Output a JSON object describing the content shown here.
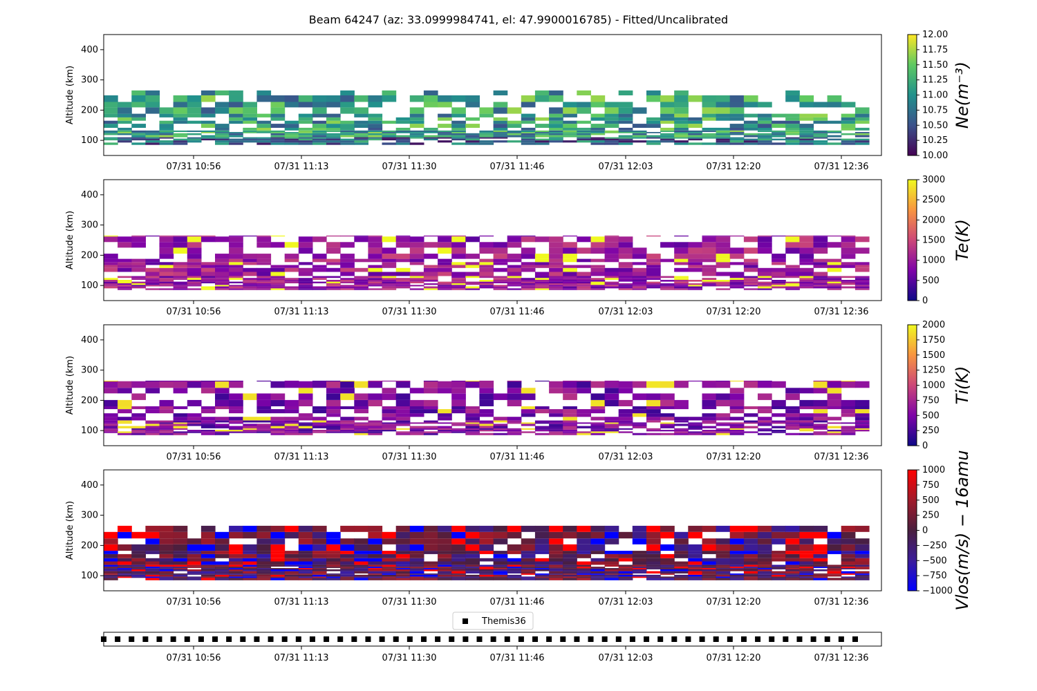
{
  "title": "Beam 64247 (az: 33.0999984741, el: 47.9900016785) - Fitted/Uncalibrated",
  "time_ticks": [
    "07/31 10:56",
    "07/31 11:13",
    "07/31 11:30",
    "07/31 11:46",
    "07/31 12:03",
    "07/31 12:20",
    "07/31 12:36"
  ],
  "chart_data": [
    {
      "type": "heatmap",
      "name": "Ne",
      "ylabel": "Altitude (km)",
      "yticks": [
        100,
        200,
        300,
        400
      ],
      "ylim": [
        50,
        450
      ],
      "xlim_minutes": [
        0,
        108
      ],
      "data_x_minutes": [
        1,
        106
      ],
      "data_alt_km": [
        85,
        265
      ],
      "colorbar": {
        "label": "Ne(m⁻³)",
        "range": [
          10.0,
          12.0
        ],
        "ticks": [
          "10.00",
          "10.25",
          "10.50",
          "10.75",
          "11.00",
          "11.25",
          "11.50",
          "11.75",
          "12.00"
        ],
        "colormap": "viridis",
        "stops": [
          "#440154",
          "#3b528b",
          "#21918c",
          "#5ec962",
          "#fde725"
        ]
      },
      "value_bias": 0.55,
      "missing_prob": 0.32,
      "seed": 11
    },
    {
      "type": "heatmap",
      "name": "Te",
      "ylabel": "Altitude (km)",
      "yticks": [
        100,
        200,
        300,
        400
      ],
      "ylim": [
        50,
        450
      ],
      "xlim_minutes": [
        0,
        108
      ],
      "data_x_minutes": [
        1,
        106
      ],
      "data_alt_km": [
        85,
        265
      ],
      "colorbar": {
        "label": "Te(K)",
        "range": [
          0,
          3000
        ],
        "ticks": [
          "0",
          "500",
          "1000",
          "1500",
          "2000",
          "2500",
          "3000"
        ],
        "colormap": "plasma",
        "stops": [
          "#0d0887",
          "#7e03a8",
          "#cc4778",
          "#f89540",
          "#f0f921"
        ]
      },
      "value_bias": 0.35,
      "missing_prob": 0.3,
      "seed": 23
    },
    {
      "type": "heatmap",
      "name": "Ti",
      "ylabel": "Altitude (km)",
      "yticks": [
        100,
        200,
        300,
        400
      ],
      "ylim": [
        50,
        450
      ],
      "xlim_minutes": [
        0,
        108
      ],
      "data_x_minutes": [
        1,
        106
      ],
      "data_alt_km": [
        85,
        265
      ],
      "colorbar": {
        "label": "Ti(K)",
        "range": [
          0,
          2000
        ],
        "ticks": [
          "0",
          "250",
          "500",
          "750",
          "1000",
          "1250",
          "1500",
          "1750",
          "2000"
        ],
        "colormap": "plasma",
        "stops": [
          "#0d0887",
          "#7e03a8",
          "#cc4778",
          "#f89540",
          "#f0f921"
        ]
      },
      "value_bias": 0.28,
      "missing_prob": 0.38,
      "seed": 37
    },
    {
      "type": "heatmap",
      "name": "Vlos",
      "ylabel": "Altitude (km)",
      "yticks": [
        100,
        200,
        300,
        400
      ],
      "ylim": [
        50,
        450
      ],
      "xlim_minutes": [
        0,
        108
      ],
      "data_x_minutes": [
        1,
        106
      ],
      "data_alt_km": [
        85,
        265
      ],
      "colorbar": {
        "label": "Vlos(m/s) − 16amu",
        "range": [
          -1000,
          1000
        ],
        "ticks": [
          "−1000",
          "−750",
          "−500",
          "−250",
          "0",
          "250",
          "500",
          "750",
          "1000"
        ],
        "colormap": "bwr",
        "stops": [
          "#0000ff",
          "#3b1c9a",
          "#4a1f3f",
          "#a01a2a",
          "#ff0000"
        ]
      },
      "value_bias": 0.5,
      "missing_prob": 0.1,
      "seed": 53
    }
  ],
  "legend": {
    "label": "Themis36",
    "marker_color": "#000000"
  },
  "themis_count": 55
}
